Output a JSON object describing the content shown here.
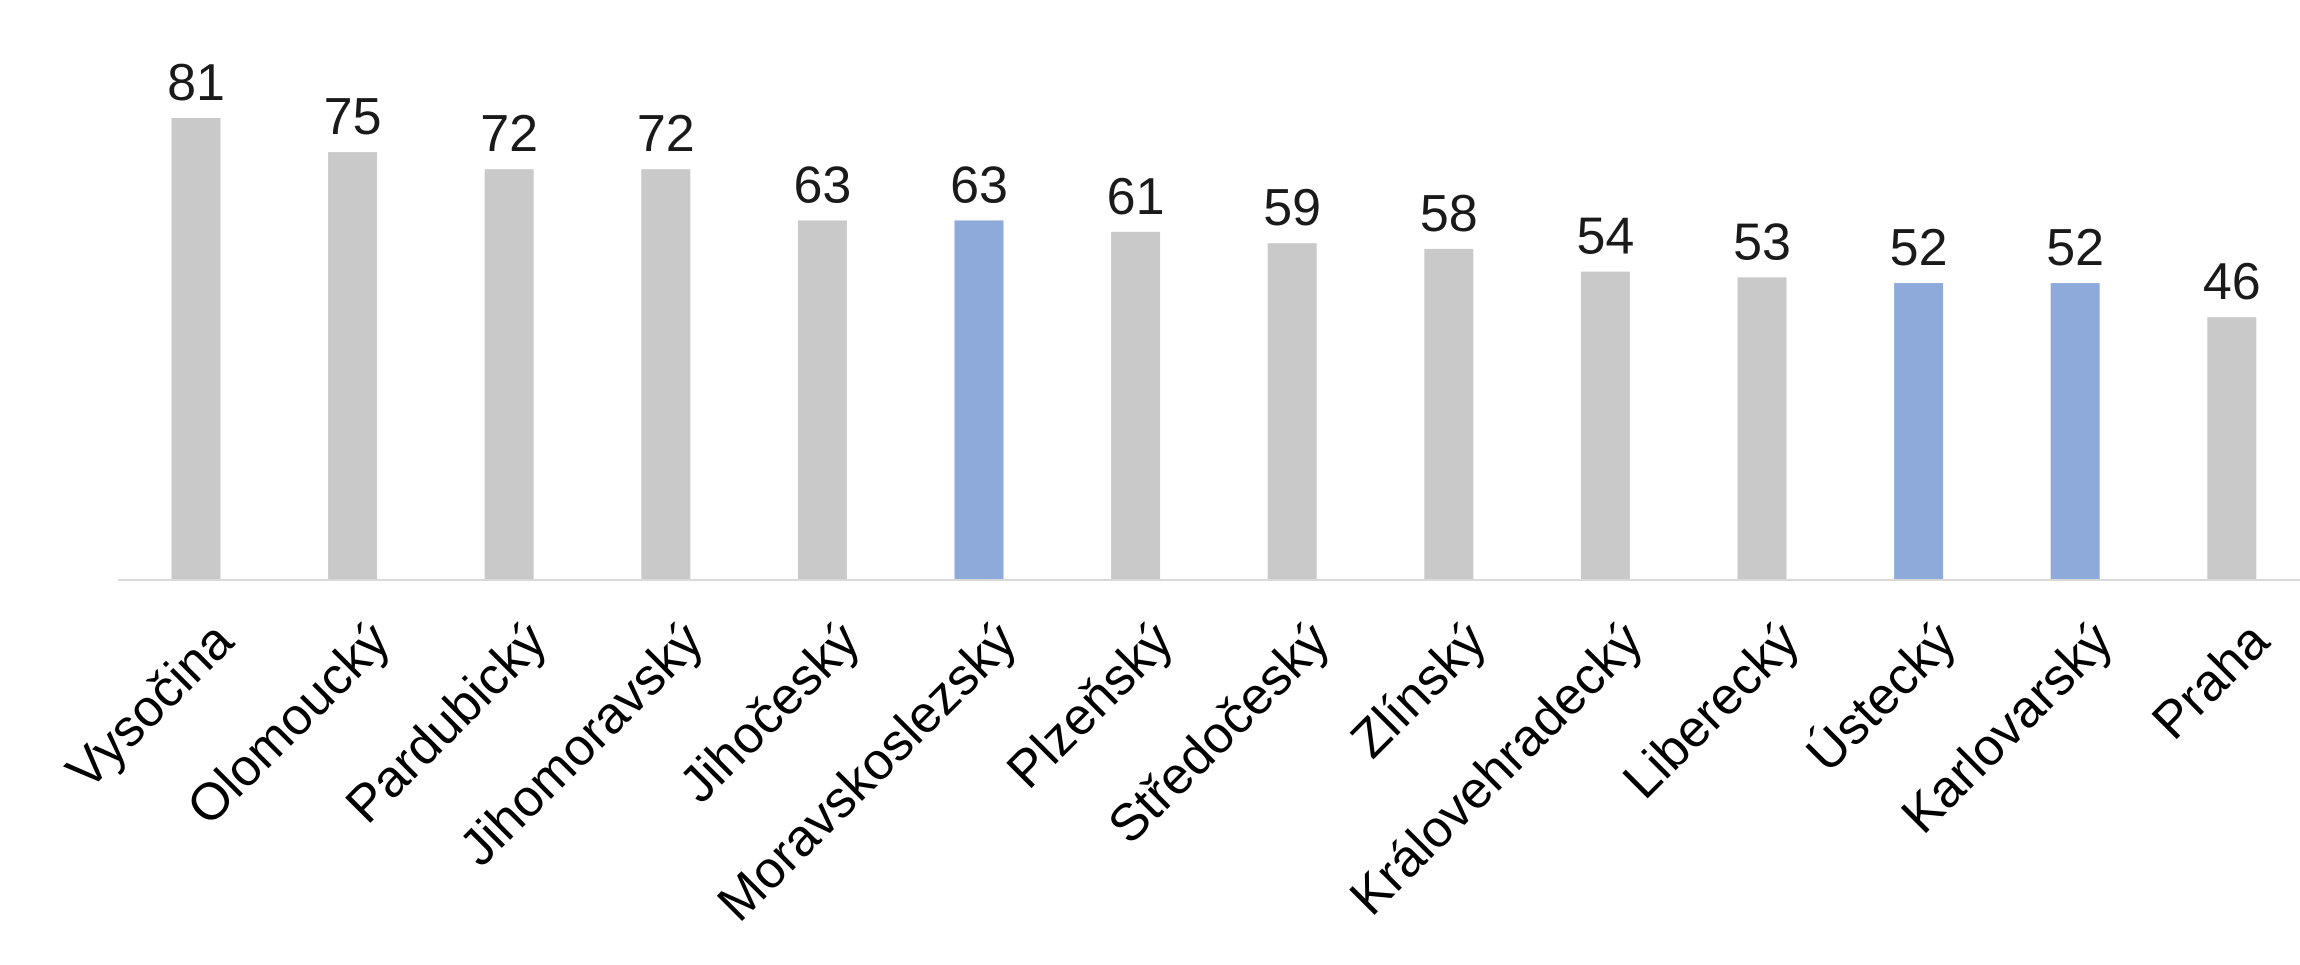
{
  "chart_data": {
    "type": "bar",
    "categories": [
      "Vysočina",
      "Olomoucký",
      "Pardubický",
      "Jihomoravský",
      "Jihočeský",
      "Moravskoslezský",
      "Plzeňský",
      "Středočeský",
      "Zlínský",
      "Královehradecký",
      "Liberecký",
      "Ústecký",
      "Karlovarský",
      "Praha"
    ],
    "values": [
      81,
      75,
      72,
      72,
      63,
      63,
      61,
      59,
      58,
      54,
      53,
      52,
      52,
      46
    ],
    "highlighted": [
      "Moravskoslezský",
      "Ústecký",
      "Karlovarský"
    ],
    "colors": {
      "default": "#c9c9c9",
      "highlight": "#8eaadb",
      "axis": "#d9d9d9"
    },
    "data_labels": true,
    "ylim": [
      0,
      94
    ],
    "grid": false,
    "legend": "none"
  }
}
